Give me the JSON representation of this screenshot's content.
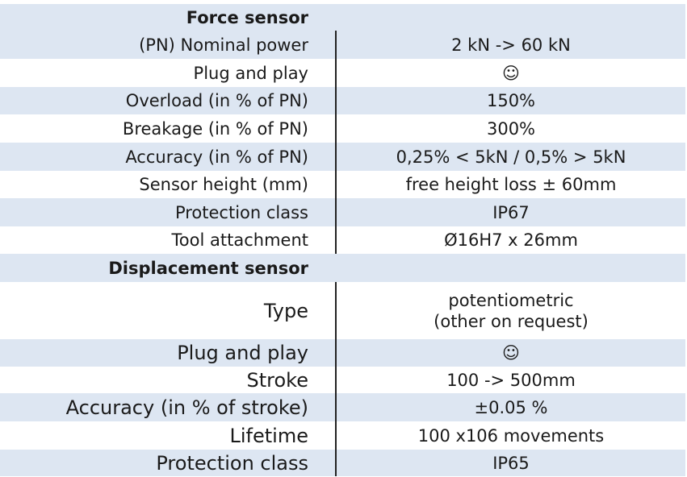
{
  "sections": [
    {
      "title": "Force sensor",
      "rows": [
        [
          "(PN) Nominal power",
          "2 kN -> 60 kN"
        ],
        [
          "Plug and play",
          "☺"
        ],
        [
          "Overload (in % of PN)",
          "150%"
        ],
        [
          "Breakage (in % of PN)",
          "300%"
        ],
        [
          "Accuracy (in % of PN)",
          "0,25% < 5kN / 0,5% > 5kN"
        ],
        [
          "Sensor height (mm)",
          "free height loss ± 60mm"
        ],
        [
          "Protection class",
          "IP67"
        ],
        [
          "Tool attachment",
          "Ø16H7 x 26mm"
        ]
      ]
    },
    {
      "title": "Displacement sensor",
      "rows": [
        [
          "Type",
          "potentiometric\n(other on request)"
        ],
        [
          "Plug and play",
          "☺"
        ],
        [
          "Stroke",
          "100 -> 500mm"
        ],
        [
          "Accuracy (in % of stroke)",
          "±0.05 %"
        ],
        [
          "Lifetime",
          "100 x106 movements"
        ],
        [
          "Protection class",
          "IP65"
        ]
      ]
    }
  ]
}
